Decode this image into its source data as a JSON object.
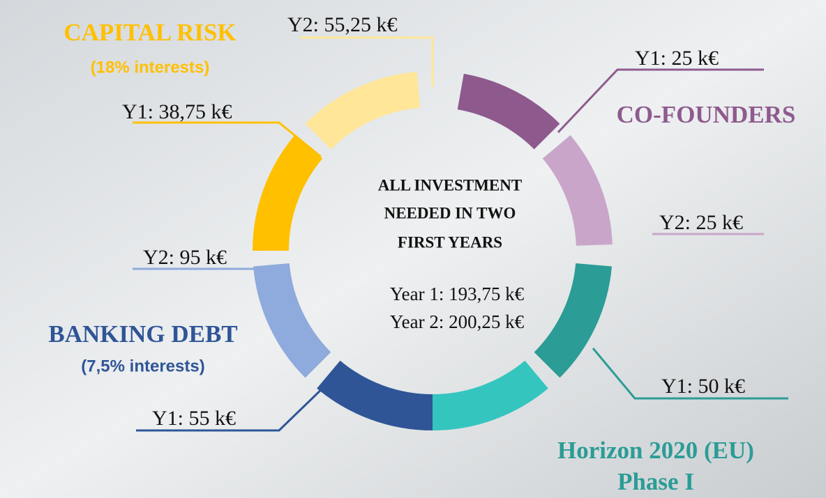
{
  "center": {
    "title_lines": [
      "ALL INVESTMENT",
      "NEEDED IN TWO",
      "FIRST YEARS"
    ],
    "year1": "Year 1: 193,75 k€",
    "year2": "Year 2: 200,25 k€"
  },
  "sources": [
    {
      "name": "CAPITAL RISK",
      "note": "(18% interests)",
      "y1": "Y1: 38,75 k€",
      "y2": "Y2: 55,25 k€"
    },
    {
      "name": "CO-FOUNDERS",
      "y1": "Y1: 25 k€",
      "y2": "Y2: 25 k€"
    },
    {
      "name": "Horizon 2020 (EU)",
      "note": "Phase I",
      "y1": "Y1: 50 k€"
    },
    {
      "name": "BANKING DEBT",
      "note": "(7,5% interests)",
      "y1": "Y1: 55 k€",
      "y2": "Y2: 95 k€"
    }
  ]
}
